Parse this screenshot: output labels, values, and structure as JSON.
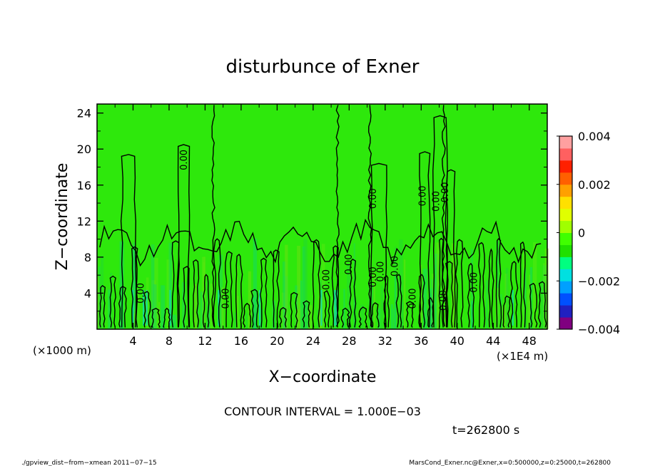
{
  "chart_data": {
    "type": "heatmap",
    "title": "disturbunce of Exner",
    "xlabel": "X−coordinate",
    "ylabel": "Z−coordinate",
    "x_unit": "(×1E4 m)",
    "y_unit": "(×1000 m)",
    "xlim": [
      0,
      50
    ],
    "ylim": [
      0,
      25
    ],
    "x_ticks": [
      4,
      8,
      12,
      16,
      20,
      24,
      28,
      32,
      36,
      40,
      44,
      48
    ],
    "y_ticks": [
      4,
      8,
      12,
      16,
      20,
      24
    ],
    "x_tick_labels": [
      "4",
      "8",
      "12",
      "16",
      "20",
      "24",
      "28",
      "32",
      "36",
      "40",
      "44",
      "48"
    ],
    "y_tick_labels": [
      "4",
      "8",
      "12",
      "16",
      "20",
      "24"
    ],
    "colorbar": {
      "range": [
        -0.004,
        0.004
      ],
      "labels": [
        "0.004",
        "0.002",
        "0",
        "−0.002",
        "−0.004"
      ],
      "label_values": [
        0.004,
        0.002,
        0,
        -0.002,
        -0.004
      ],
      "colors": [
        "#800080",
        "#2020c0",
        "#0050ff",
        "#00a0ff",
        "#00e0e0",
        "#00ff80",
        "#20e000",
        "#40ff00",
        "#a0ff00",
        "#e0ff00",
        "#ffe000",
        "#ffa000",
        "#ff6000",
        "#ff2000",
        "#ff6060",
        "#ffa0a0"
      ],
      "background_color": "#2ee80c"
    },
    "contour_labels": [
      {
        "text": "0.00",
        "x": 10,
        "z": 18.8
      },
      {
        "text": "0.00",
        "x": 31,
        "z": 14.5
      },
      {
        "text": "0.00",
        "x": 36.5,
        "z": 14.8
      },
      {
        "text": "0.00",
        "x": 38,
        "z": 14.2
      },
      {
        "text": "0.00",
        "x": 39,
        "z": 15.2
      },
      {
        "text": "0.00",
        "x": 5.2,
        "z": 4.0
      },
      {
        "text": "0.00",
        "x": 14.6,
        "z": 3.4
      },
      {
        "text": "0.00",
        "x": 25.8,
        "z": 5.5
      },
      {
        "text": "0.00",
        "x": 28.3,
        "z": 7.2
      },
      {
        "text": "0.00",
        "x": 31,
        "z": 5.8
      },
      {
        "text": "0.00",
        "x": 31.8,
        "z": 6.4
      },
      {
        "text": "0.00",
        "x": 33.4,
        "z": 7.0
      },
      {
        "text": "0.00",
        "x": 35.4,
        "z": 3.4
      },
      {
        "text": "0.00",
        "x": 38.8,
        "z": 3.2
      },
      {
        "text": "0.00",
        "x": 42.2,
        "z": 5.2
      }
    ],
    "contour_interval_label": "CONTOUR INTERVAL = 1.000E−03",
    "time_label": "t=262800 s"
  },
  "footer": {
    "left": "./gpview_dist−from−xmean  2011−07−15",
    "right": "MarsCond_Exner.nc@Exner,x=0:500000,z=0:25000,t=262800"
  }
}
